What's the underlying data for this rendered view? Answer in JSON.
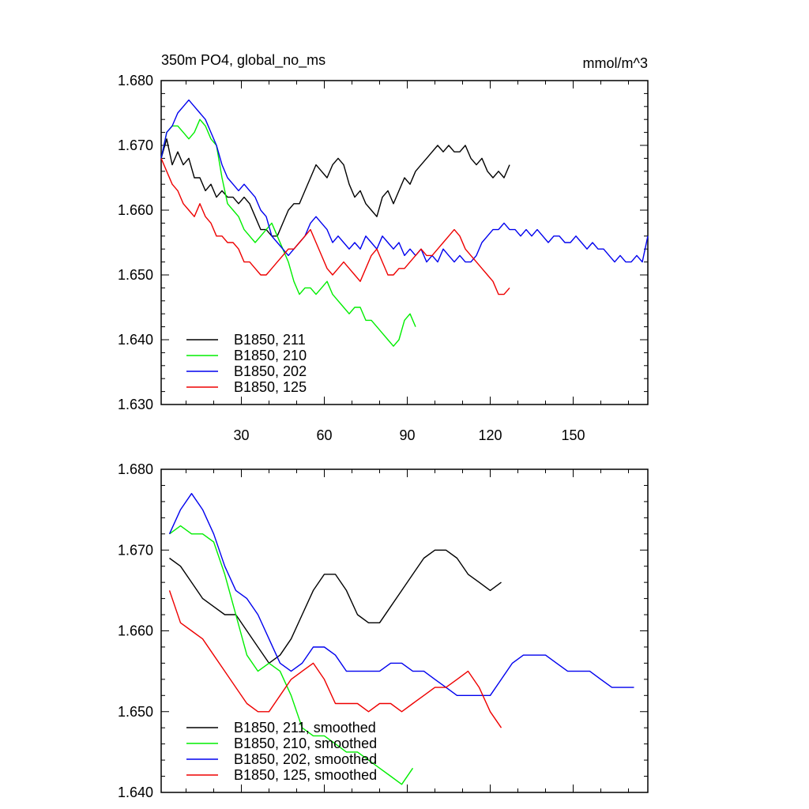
{
  "header": {
    "title": "350m PO4, global_no_ms",
    "units": "mmol/m^3"
  },
  "chart_data": [
    {
      "type": "line",
      "title": "350m PO4, global_no_ms",
      "units": "mmol/m^3",
      "xlim": [
        1,
        177
      ],
      "ylim": [
        1.63,
        1.68
      ],
      "x_ticks": [
        30,
        60,
        90,
        120,
        150
      ],
      "x_tick_labels": [
        "30",
        "60",
        "90",
        "120",
        "150"
      ],
      "y_ticks": [
        1.63,
        1.64,
        1.65,
        1.66,
        1.67,
        1.68
      ],
      "y_tick_labels": [
        "1.630",
        "1.640",
        "1.650",
        "1.660",
        "1.670",
        "1.680"
      ],
      "grid": false,
      "legend_position": "bottom-left",
      "series": [
        {
          "name": "B1850, 211",
          "color": "#000000",
          "x": [
            1,
            3,
            5,
            7,
            9,
            11,
            13,
            15,
            17,
            19,
            21,
            23,
            25,
            27,
            29,
            31,
            33,
            35,
            37,
            39,
            41,
            43,
            45,
            47,
            49,
            51,
            53,
            55,
            57,
            59,
            61,
            63,
            65,
            67,
            69,
            71,
            73,
            75,
            77,
            79,
            81,
            83,
            85,
            87,
            89,
            91,
            93,
            95,
            97,
            99,
            101,
            103,
            105,
            107,
            109,
            111,
            113,
            115,
            117,
            119,
            121,
            123,
            125,
            127
          ],
          "y": [
            1.668,
            1.671,
            1.667,
            1.669,
            1.667,
            1.668,
            1.665,
            1.665,
            1.663,
            1.664,
            1.662,
            1.663,
            1.662,
            1.662,
            1.661,
            1.662,
            1.661,
            1.659,
            1.657,
            1.657,
            1.656,
            1.656,
            1.658,
            1.66,
            1.661,
            1.661,
            1.663,
            1.665,
            1.667,
            1.666,
            1.665,
            1.667,
            1.668,
            1.667,
            1.664,
            1.662,
            1.663,
            1.661,
            1.66,
            1.659,
            1.662,
            1.663,
            1.661,
            1.663,
            1.665,
            1.664,
            1.666,
            1.667,
            1.668,
            1.669,
            1.67,
            1.669,
            1.67,
            1.669,
            1.669,
            1.67,
            1.668,
            1.667,
            1.668,
            1.666,
            1.665,
            1.666,
            1.665,
            1.667
          ]
        },
        {
          "name": "B1850, 210",
          "color": "#00ee00",
          "x": [
            1,
            3,
            5,
            7,
            9,
            11,
            13,
            15,
            17,
            19,
            21,
            23,
            25,
            27,
            29,
            31,
            33,
            35,
            37,
            39,
            41,
            43,
            45,
            47,
            49,
            51,
            53,
            55,
            57,
            59,
            61,
            63,
            65,
            67,
            69,
            71,
            73,
            75,
            77,
            79,
            81,
            83,
            85,
            87,
            89,
            91,
            93
          ],
          "y": [
            1.668,
            1.672,
            1.673,
            1.673,
            1.672,
            1.671,
            1.672,
            1.674,
            1.673,
            1.671,
            1.67,
            1.665,
            1.661,
            1.66,
            1.659,
            1.657,
            1.656,
            1.655,
            1.656,
            1.657,
            1.658,
            1.656,
            1.654,
            1.652,
            1.649,
            1.647,
            1.648,
            1.648,
            1.647,
            1.648,
            1.649,
            1.647,
            1.646,
            1.645,
            1.644,
            1.645,
            1.645,
            1.643,
            1.643,
            1.642,
            1.641,
            1.64,
            1.639,
            1.64,
            1.643,
            1.644,
            1.642
          ]
        },
        {
          "name": "B1850, 202",
          "color": "#0000ee",
          "x": [
            1,
            3,
            5,
            7,
            9,
            11,
            13,
            15,
            17,
            19,
            21,
            23,
            25,
            27,
            29,
            31,
            33,
            35,
            37,
            39,
            41,
            43,
            45,
            47,
            49,
            51,
            53,
            55,
            57,
            59,
            61,
            63,
            65,
            67,
            69,
            71,
            73,
            75,
            77,
            79,
            81,
            83,
            85,
            87,
            89,
            91,
            93,
            95,
            97,
            99,
            101,
            103,
            105,
            107,
            109,
            111,
            113,
            115,
            117,
            119,
            121,
            123,
            125,
            127,
            129,
            131,
            133,
            135,
            137,
            139,
            141,
            143,
            145,
            147,
            149,
            151,
            153,
            155,
            157,
            159,
            161,
            163,
            165,
            167,
            169,
            171,
            173,
            175,
            177
          ],
          "y": [
            1.668,
            1.672,
            1.673,
            1.675,
            1.676,
            1.677,
            1.676,
            1.675,
            1.674,
            1.672,
            1.67,
            1.667,
            1.665,
            1.664,
            1.663,
            1.664,
            1.663,
            1.662,
            1.66,
            1.659,
            1.656,
            1.655,
            1.654,
            1.653,
            1.654,
            1.655,
            1.656,
            1.658,
            1.659,
            1.658,
            1.657,
            1.655,
            1.656,
            1.655,
            1.654,
            1.655,
            1.654,
            1.656,
            1.655,
            1.654,
            1.656,
            1.655,
            1.654,
            1.655,
            1.653,
            1.654,
            1.653,
            1.654,
            1.652,
            1.653,
            1.652,
            1.654,
            1.653,
            1.652,
            1.653,
            1.652,
            1.652,
            1.653,
            1.655,
            1.656,
            1.657,
            1.657,
            1.658,
            1.657,
            1.657,
            1.656,
            1.657,
            1.656,
            1.657,
            1.656,
            1.655,
            1.656,
            1.656,
            1.655,
            1.655,
            1.656,
            1.655,
            1.654,
            1.655,
            1.654,
            1.654,
            1.653,
            1.652,
            1.653,
            1.652,
            1.652,
            1.653,
            1.652,
            1.656
          ]
        },
        {
          "name": "B1850, 125",
          "color": "#ee0000",
          "x": [
            1,
            3,
            5,
            7,
            9,
            11,
            13,
            15,
            17,
            19,
            21,
            23,
            25,
            27,
            29,
            31,
            33,
            35,
            37,
            39,
            41,
            43,
            45,
            47,
            49,
            51,
            53,
            55,
            57,
            59,
            61,
            63,
            65,
            67,
            69,
            71,
            73,
            75,
            77,
            79,
            81,
            83,
            85,
            87,
            89,
            91,
            93,
            95,
            97,
            99,
            101,
            103,
            105,
            107,
            109,
            111,
            113,
            115,
            117,
            119,
            121,
            123,
            125,
            127
          ],
          "y": [
            1.668,
            1.666,
            1.664,
            1.663,
            1.661,
            1.66,
            1.659,
            1.661,
            1.659,
            1.658,
            1.656,
            1.656,
            1.655,
            1.655,
            1.654,
            1.652,
            1.652,
            1.651,
            1.65,
            1.65,
            1.651,
            1.652,
            1.653,
            1.654,
            1.654,
            1.655,
            1.656,
            1.657,
            1.655,
            1.653,
            1.651,
            1.65,
            1.651,
            1.652,
            1.651,
            1.65,
            1.649,
            1.651,
            1.653,
            1.654,
            1.652,
            1.65,
            1.65,
            1.651,
            1.651,
            1.652,
            1.653,
            1.654,
            1.653,
            1.653,
            1.654,
            1.655,
            1.656,
            1.657,
            1.656,
            1.654,
            1.653,
            1.652,
            1.651,
            1.65,
            1.649,
            1.647,
            1.647,
            1.648
          ]
        }
      ]
    },
    {
      "type": "line",
      "xlim": [
        1,
        177
      ],
      "ylim": [
        1.64,
        1.68
      ],
      "x_ticks": [
        30,
        60,
        90,
        120,
        150
      ],
      "y_ticks": [
        1.64,
        1.65,
        1.66,
        1.67,
        1.68
      ],
      "y_tick_labels": [
        "1.640",
        "1.650",
        "1.660",
        "1.670",
        "1.680"
      ],
      "grid": false,
      "legend_position": "bottom-left",
      "series": [
        {
          "name": "B1850, 211, smoothed",
          "color": "#000000",
          "x": [
            4,
            8,
            12,
            16,
            20,
            24,
            28,
            32,
            36,
            40,
            44,
            48,
            52,
            56,
            60,
            64,
            68,
            72,
            76,
            80,
            84,
            88,
            92,
            96,
            100,
            104,
            108,
            112,
            116,
            120,
            124
          ],
          "y": [
            1.669,
            1.668,
            1.666,
            1.664,
            1.663,
            1.662,
            1.662,
            1.66,
            1.658,
            1.656,
            1.657,
            1.659,
            1.662,
            1.665,
            1.667,
            1.667,
            1.665,
            1.662,
            1.661,
            1.661,
            1.663,
            1.665,
            1.667,
            1.669,
            1.67,
            1.67,
            1.669,
            1.667,
            1.666,
            1.665,
            1.666
          ]
        },
        {
          "name": "B1850, 210, smoothed",
          "color": "#00ee00",
          "x": [
            4,
            8,
            12,
            16,
            20,
            24,
            28,
            32,
            36,
            40,
            44,
            48,
            52,
            56,
            60,
            64,
            68,
            72,
            76,
            80,
            84,
            88,
            92
          ],
          "y": [
            1.672,
            1.673,
            1.672,
            1.672,
            1.671,
            1.667,
            1.662,
            1.657,
            1.655,
            1.656,
            1.655,
            1.652,
            1.648,
            1.647,
            1.647,
            1.646,
            1.645,
            1.645,
            1.644,
            1.643,
            1.642,
            1.641,
            1.643
          ]
        },
        {
          "name": "B1850, 202, smoothed",
          "color": "#0000ee",
          "x": [
            4,
            8,
            12,
            16,
            20,
            24,
            28,
            32,
            36,
            40,
            44,
            48,
            52,
            56,
            60,
            64,
            68,
            72,
            76,
            80,
            84,
            88,
            92,
            96,
            100,
            104,
            108,
            112,
            116,
            120,
            124,
            128,
            132,
            136,
            140,
            144,
            148,
            152,
            156,
            160,
            164,
            168,
            172
          ],
          "y": [
            1.672,
            1.675,
            1.677,
            1.675,
            1.672,
            1.668,
            1.665,
            1.664,
            1.662,
            1.659,
            1.656,
            1.655,
            1.656,
            1.658,
            1.658,
            1.657,
            1.655,
            1.655,
            1.655,
            1.655,
            1.656,
            1.656,
            1.655,
            1.655,
            1.654,
            1.653,
            1.652,
            1.652,
            1.652,
            1.652,
            1.654,
            1.656,
            1.657,
            1.657,
            1.657,
            1.656,
            1.655,
            1.655,
            1.655,
            1.654,
            1.653,
            1.653,
            1.653
          ]
        },
        {
          "name": "B1850, 125, smoothed",
          "color": "#ee0000",
          "x": [
            4,
            8,
            12,
            16,
            20,
            24,
            28,
            32,
            36,
            40,
            44,
            48,
            52,
            56,
            60,
            64,
            68,
            72,
            76,
            80,
            84,
            88,
            92,
            96,
            100,
            104,
            108,
            112,
            116,
            120,
            124
          ],
          "y": [
            1.665,
            1.661,
            1.66,
            1.659,
            1.657,
            1.655,
            1.653,
            1.651,
            1.65,
            1.65,
            1.652,
            1.654,
            1.655,
            1.656,
            1.654,
            1.651,
            1.651,
            1.651,
            1.65,
            1.651,
            1.651,
            1.65,
            1.651,
            1.652,
            1.653,
            1.653,
            1.654,
            1.655,
            1.653,
            1.65,
            1.648
          ]
        }
      ]
    }
  ]
}
